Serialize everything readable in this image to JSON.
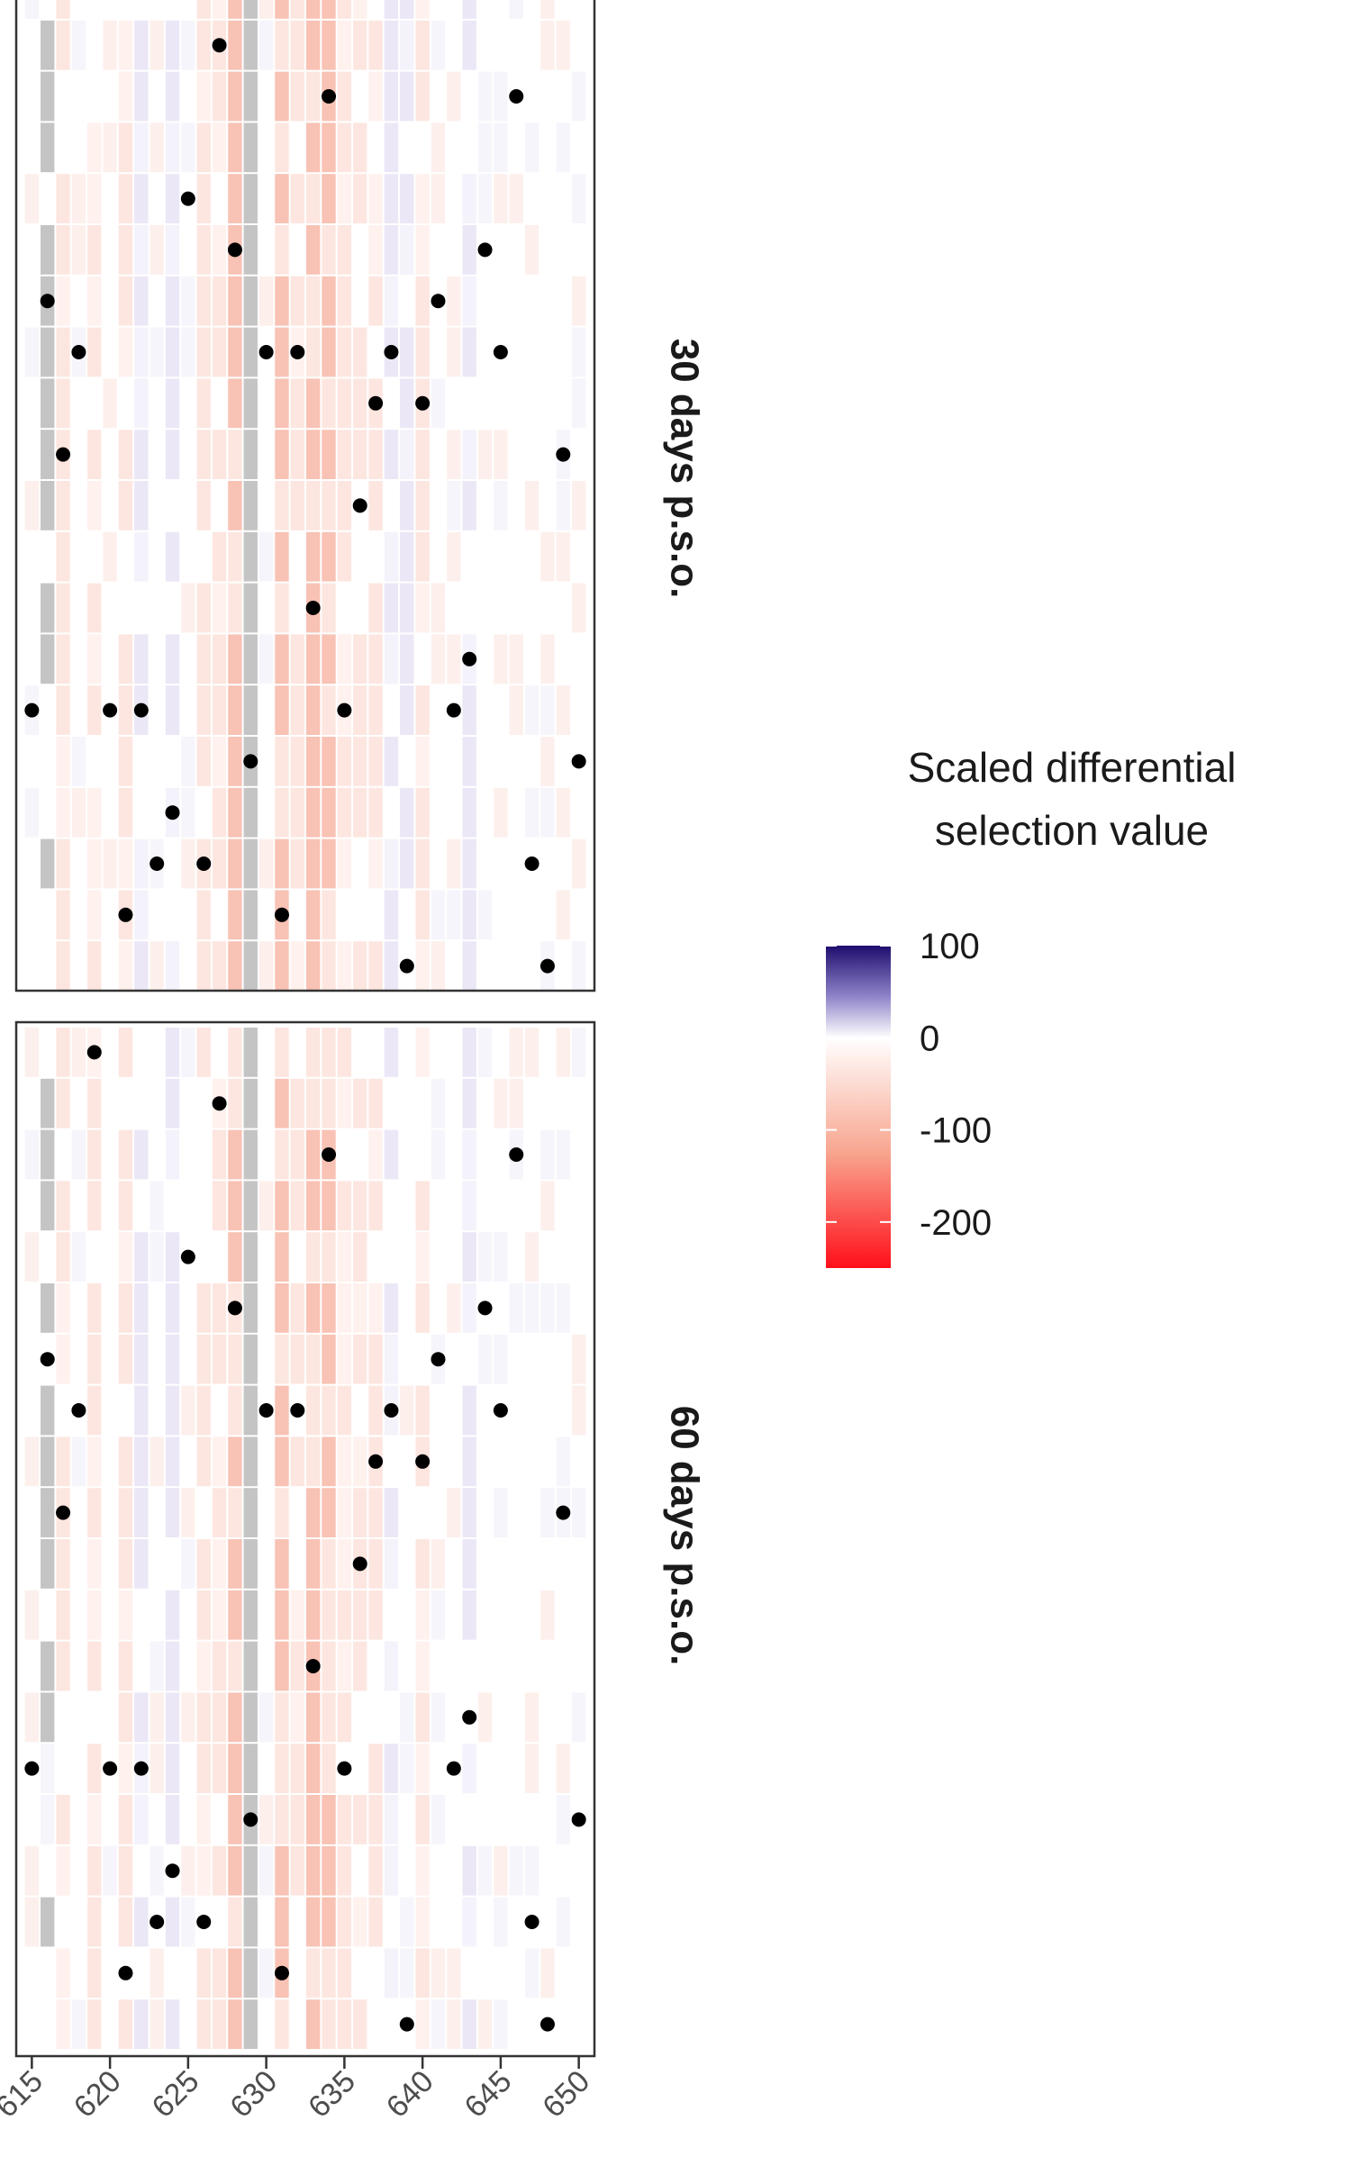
{
  "chart_data": {
    "type": "heatmap",
    "x_axis": {
      "range": [
        614,
        651
      ],
      "ticks": [
        615,
        620,
        625,
        630,
        635,
        640,
        645,
        650
      ],
      "tick_labels": [
        "615",
        "620",
        "625",
        "630",
        "635",
        "640",
        "645",
        "650"
      ]
    },
    "row_count": 20,
    "facets": [
      {
        "label": "30 days p.s.o.",
        "top_row_partially_visible": true,
        "grey_sites": [
          616,
          629
        ],
        "grey_column_rows": [
          1,
          2,
          3,
          5,
          6,
          7,
          8,
          9,
          10,
          12,
          13,
          17
        ],
        "strong_negative_sites": [
          628,
          631,
          633,
          634
        ],
        "weak_negative_sites": [
          617,
          619,
          621,
          626,
          627,
          632,
          635,
          636,
          637,
          640
        ],
        "positive_sites": [
          622,
          624,
          638,
          639,
          643
        ],
        "dots": [
          {
            "row": 1,
            "sites": [
              627
            ]
          },
          {
            "row": 2,
            "sites": [
              634,
              646
            ]
          },
          {
            "row": 3,
            "sites": []
          },
          {
            "row": 4,
            "sites": [
              625
            ]
          },
          {
            "row": 5,
            "sites": [
              628,
              644
            ]
          },
          {
            "row": 6,
            "sites": [
              616,
              641
            ]
          },
          {
            "row": 7,
            "sites": [
              618,
              630,
              632,
              638,
              645
            ]
          },
          {
            "row": 8,
            "sites": [
              637,
              640
            ]
          },
          {
            "row": 9,
            "sites": [
              617,
              649
            ]
          },
          {
            "row": 10,
            "sites": [
              636
            ]
          },
          {
            "row": 11,
            "sites": []
          },
          {
            "row": 12,
            "sites": [
              633
            ]
          },
          {
            "row": 13,
            "sites": [
              643
            ]
          },
          {
            "row": 14,
            "sites": [
              615,
              620,
              622,
              635,
              642
            ]
          },
          {
            "row": 15,
            "sites": [
              629,
              650
            ]
          },
          {
            "row": 16,
            "sites": [
              624
            ]
          },
          {
            "row": 17,
            "sites": [
              623,
              626,
              647
            ]
          },
          {
            "row": 18,
            "sites": [
              621,
              631
            ]
          },
          {
            "row": 19,
            "sites": [
              639,
              648
            ]
          }
        ]
      },
      {
        "label": "60 days p.s.o.",
        "top_row_partially_visible": false,
        "grey_sites": [
          616,
          629
        ],
        "grey_column_rows": [
          1,
          2,
          3,
          5,
          7,
          8,
          9,
          10,
          12,
          13,
          17
        ],
        "strong_negative_sites": [
          628,
          631,
          633,
          634
        ],
        "weak_negative_sites": [
          617,
          619,
          621,
          626,
          627,
          632,
          635,
          636,
          637,
          640
        ],
        "positive_sites": [
          622,
          624,
          626,
          631,
          638,
          643
        ],
        "dots": [
          {
            "row": 0,
            "sites": [
              619
            ]
          },
          {
            "row": 1,
            "sites": [
              627
            ]
          },
          {
            "row": 2,
            "sites": [
              634,
              646
            ]
          },
          {
            "row": 3,
            "sites": []
          },
          {
            "row": 4,
            "sites": [
              625
            ]
          },
          {
            "row": 5,
            "sites": [
              628,
              644
            ]
          },
          {
            "row": 6,
            "sites": [
              616,
              641
            ]
          },
          {
            "row": 7,
            "sites": [
              618,
              630,
              632,
              638,
              645
            ]
          },
          {
            "row": 8,
            "sites": [
              637,
              640
            ]
          },
          {
            "row": 9,
            "sites": [
              617,
              649
            ]
          },
          {
            "row": 10,
            "sites": [
              636
            ]
          },
          {
            "row": 11,
            "sites": []
          },
          {
            "row": 12,
            "sites": [
              633
            ]
          },
          {
            "row": 13,
            "sites": [
              643
            ]
          },
          {
            "row": 14,
            "sites": [
              615,
              620,
              622,
              635,
              642
            ]
          },
          {
            "row": 15,
            "sites": [
              629,
              650
            ]
          },
          {
            "row": 16,
            "sites": [
              624
            ]
          },
          {
            "row": 17,
            "sites": [
              623,
              626,
              647
            ]
          },
          {
            "row": 18,
            "sites": [
              621,
              631
            ]
          },
          {
            "row": 19,
            "sites": [
              639,
              648
            ]
          }
        ]
      }
    ],
    "legend": {
      "title_lines": [
        "Scaled differential",
        "selection value"
      ],
      "placement": "right",
      "range": [
        -250,
        100
      ],
      "ticks": [
        100,
        0,
        -100,
        -200
      ],
      "tick_labels": [
        "100",
        "0",
        "-100",
        "-200"
      ],
      "colors": {
        "high": "#1f0d6e",
        "mid": "#ffffff",
        "low": "#ff0f1a"
      }
    },
    "colors": {
      "grey_cell": "#c4c4c4",
      "dot": "#000000",
      "panel_border": "#333333",
      "strong_negative": "#f8c2b4",
      "weak_negative": "#fde6e0",
      "positive": "#ebe7f6"
    }
  }
}
